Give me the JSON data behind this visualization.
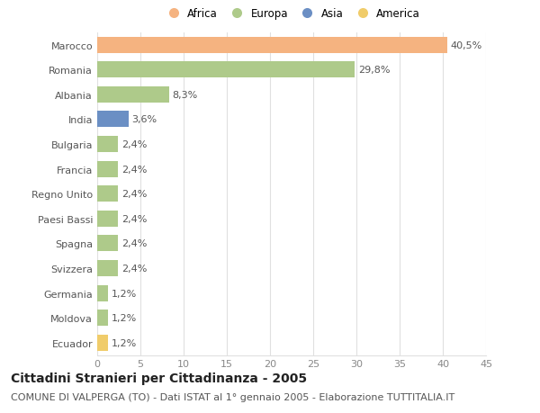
{
  "countries": [
    "Marocco",
    "Romania",
    "Albania",
    "India",
    "Bulgaria",
    "Francia",
    "Regno Unito",
    "Paesi Bassi",
    "Spagna",
    "Svizzera",
    "Germania",
    "Moldova",
    "Ecuador"
  ],
  "values": [
    40.5,
    29.8,
    8.3,
    3.6,
    2.4,
    2.4,
    2.4,
    2.4,
    2.4,
    2.4,
    1.2,
    1.2,
    1.2
  ],
  "labels": [
    "40,5%",
    "29,8%",
    "8,3%",
    "3,6%",
    "2,4%",
    "2,4%",
    "2,4%",
    "2,4%",
    "2,4%",
    "2,4%",
    "1,2%",
    "1,2%",
    "1,2%"
  ],
  "colors": [
    "#F5B380",
    "#AECA8A",
    "#AECA8A",
    "#6B8FC4",
    "#AECA8A",
    "#AECA8A",
    "#AECA8A",
    "#AECA8A",
    "#AECA8A",
    "#AECA8A",
    "#AECA8A",
    "#AECA8A",
    "#F0CC6A"
  ],
  "continent_labels": [
    "Africa",
    "Europa",
    "Asia",
    "America"
  ],
  "continent_colors": [
    "#F5B380",
    "#AECA8A",
    "#6B8FC4",
    "#F0CC6A"
  ],
  "xlim": [
    0,
    45
  ],
  "xticks": [
    0,
    5,
    10,
    15,
    20,
    25,
    30,
    35,
    40,
    45
  ],
  "title": "Cittadini Stranieri per Cittadinanza - 2005",
  "subtitle": "COMUNE DI VALPERGA (TO) - Dati ISTAT al 1° gennaio 2005 - Elaborazione TUTTITALIA.IT",
  "background_color": "#FFFFFF",
  "grid_color": "#E0E0E0",
  "bar_height": 0.65,
  "title_fontsize": 10,
  "subtitle_fontsize": 8,
  "tick_fontsize": 8,
  "label_fontsize": 8
}
